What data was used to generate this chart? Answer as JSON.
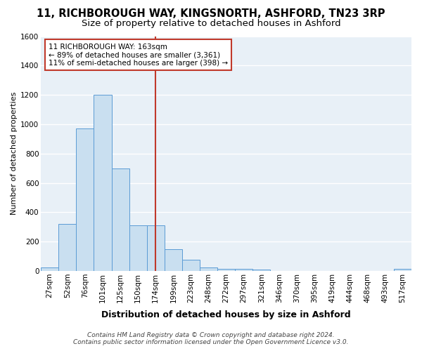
{
  "title": "11, RICHBOROUGH WAY, KINGSNORTH, ASHFORD, TN23 3RP",
  "subtitle": "Size of property relative to detached houses in Ashford",
  "xlabel": "Distribution of detached houses by size in Ashford",
  "ylabel": "Number of detached properties",
  "bar_labels": [
    "27sqm",
    "52sqm",
    "76sqm",
    "101sqm",
    "125sqm",
    "150sqm",
    "174sqm",
    "199sqm",
    "223sqm",
    "248sqm",
    "272sqm",
    "297sqm",
    "321sqm",
    "346sqm",
    "370sqm",
    "395sqm",
    "419sqm",
    "444sqm",
    "468sqm",
    "493sqm",
    "517sqm"
  ],
  "bar_values": [
    25,
    320,
    970,
    1200,
    700,
    310,
    310,
    150,
    75,
    25,
    15,
    15,
    10,
    0,
    0,
    0,
    0,
    0,
    0,
    0,
    15
  ],
  "bar_color": "#c9dff0",
  "bar_edge_color": "#5b9bd5",
  "vline_color": "#c0392b",
  "vline_x_index": 6,
  "ylim": [
    0,
    1600
  ],
  "yticks": [
    0,
    200,
    400,
    600,
    800,
    1000,
    1200,
    1400,
    1600
  ],
  "annotation_line1": "11 RICHBOROUGH WAY: 163sqm",
  "annotation_line2": "← 89% of detached houses are smaller (3,361)",
  "annotation_line3": "11% of semi-detached houses are larger (398) →",
  "annotation_box_facecolor": "#ffffff",
  "annotation_box_edgecolor": "#c0392b",
  "footer_line1": "Contains HM Land Registry data © Crown copyright and database right 2024.",
  "footer_line2": "Contains public sector information licensed under the Open Government Licence v3.0.",
  "plot_bg_color": "#e8f0f7",
  "fig_bg_color": "#ffffff",
  "grid_color": "#ffffff",
  "title_fontsize": 10.5,
  "subtitle_fontsize": 9.5,
  "xlabel_fontsize": 9,
  "ylabel_fontsize": 8,
  "tick_fontsize": 7.5,
  "footer_fontsize": 6.5
}
